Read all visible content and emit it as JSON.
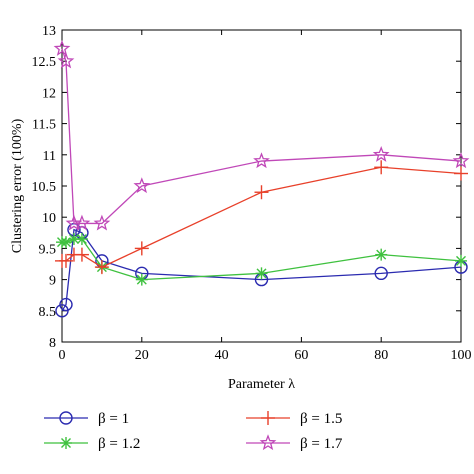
{
  "chart_data": {
    "type": "line",
    "xlabel": "Parameter λ",
    "ylabel": "Clustering error (100%)",
    "xlim": [
      0,
      100
    ],
    "ylim": [
      8,
      13
    ],
    "xticks": [
      "0",
      "20",
      "40",
      "60",
      "80",
      "100"
    ],
    "yticks": [
      "8",
      "8.5",
      "9",
      "9.5",
      "10",
      "10.5",
      "11",
      "11.5",
      "12",
      "12.5",
      "13"
    ],
    "x": [
      0,
      1,
      3,
      5,
      10,
      20,
      50,
      80,
      100
    ],
    "grid": false,
    "legend_position": "bottom",
    "series": [
      {
        "name": "β = 1",
        "marker": "circle",
        "color": "#2b2bb0",
        "values": [
          8.5,
          8.6,
          9.8,
          9.75,
          9.3,
          9.1,
          9.0,
          9.1,
          9.2
        ]
      },
      {
        "name": "β = 1.2",
        "marker": "asterisk",
        "color": "#3fc13f",
        "values": [
          9.6,
          9.6,
          9.65,
          9.65,
          9.2,
          9.0,
          9.1,
          9.4,
          9.3
        ]
      },
      {
        "name": "β = 1.5",
        "marker": "plus",
        "color": "#e8402a",
        "values": [
          9.3,
          9.3,
          9.4,
          9.4,
          9.2,
          9.5,
          10.4,
          10.8,
          10.7
        ]
      },
      {
        "name": "β = 1.7",
        "marker": "star",
        "color": "#c048b8",
        "values": [
          12.7,
          12.5,
          9.9,
          9.9,
          9.9,
          10.5,
          10.9,
          11.0,
          10.9
        ]
      }
    ]
  }
}
